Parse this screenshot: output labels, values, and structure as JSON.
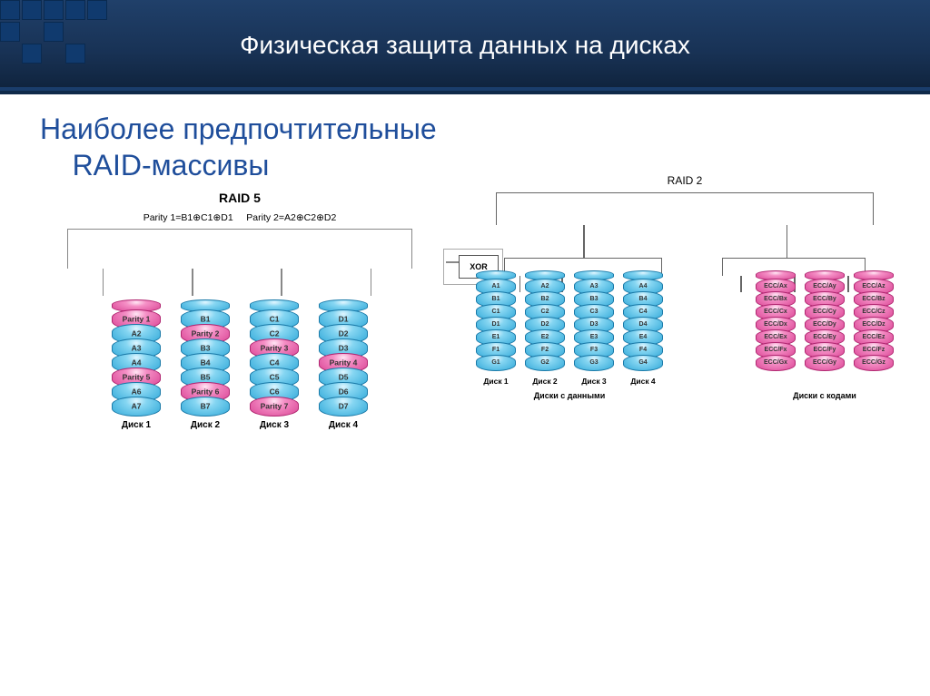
{
  "header": {
    "title": "Физическая защита данных на дисках",
    "deco_color": "#103a6e",
    "bg_gradient": [
      "#20406a",
      "#10243e"
    ]
  },
  "main": {
    "title_line1": "Наиболее предпочтительные",
    "title_line2": "RAID-массивы",
    "title_color": "#1f4e9b"
  },
  "raid5": {
    "type": "diagram",
    "title": "RAID 5",
    "parity_eq1": "Parity 1=B1⊕C1⊕D1",
    "parity_eq2": "Parity 2=A2⊕C2⊕D2",
    "xor_label": "XOR",
    "disk_label_prefix": "Диск",
    "colors": {
      "data": "#4ab6e0",
      "parity": "#e055a0",
      "border": "#888888"
    },
    "disks": [
      {
        "name": "Диск 1",
        "cells": [
          {
            "t": "p",
            "lbl": "Parity 1"
          },
          {
            "t": "d",
            "lbl": "A2"
          },
          {
            "t": "d",
            "lbl": "A3"
          },
          {
            "t": "d",
            "lbl": "A4"
          },
          {
            "t": "p",
            "lbl": "Parity 5"
          },
          {
            "t": "d",
            "lbl": "A6"
          },
          {
            "t": "d",
            "lbl": "A7"
          }
        ]
      },
      {
        "name": "Диск 2",
        "cells": [
          {
            "t": "d",
            "lbl": "B1"
          },
          {
            "t": "p",
            "lbl": "Parity 2"
          },
          {
            "t": "d",
            "lbl": "B3"
          },
          {
            "t": "d",
            "lbl": "B4"
          },
          {
            "t": "d",
            "lbl": "B5"
          },
          {
            "t": "p",
            "lbl": "Parity 6"
          },
          {
            "t": "d",
            "lbl": "B7"
          }
        ]
      },
      {
        "name": "Диск 3",
        "cells": [
          {
            "t": "d",
            "lbl": "C1"
          },
          {
            "t": "d",
            "lbl": "C2"
          },
          {
            "t": "p",
            "lbl": "Parity 3"
          },
          {
            "t": "d",
            "lbl": "C4"
          },
          {
            "t": "d",
            "lbl": "C5"
          },
          {
            "t": "d",
            "lbl": "C6"
          },
          {
            "t": "p",
            "lbl": "Parity 7"
          }
        ]
      },
      {
        "name": "Диск 4",
        "cells": [
          {
            "t": "d",
            "lbl": "D1"
          },
          {
            "t": "d",
            "lbl": "D2"
          },
          {
            "t": "d",
            "lbl": "D3"
          },
          {
            "t": "p",
            "lbl": "Parity 4"
          },
          {
            "t": "d",
            "lbl": "D5"
          },
          {
            "t": "d",
            "lbl": "D6"
          },
          {
            "t": "d",
            "lbl": "D7"
          }
        ]
      }
    ]
  },
  "raid2": {
    "type": "diagram",
    "title": "RAID 2",
    "group_data_label": "Диски с данными",
    "group_ecc_label": "Диски с кодами",
    "colors": {
      "data": "#4ab6e0",
      "ecc": "#e055a0",
      "border": "#666666"
    },
    "data_disks": [
      {
        "name": "Диск 1",
        "cells": [
          "A1",
          "B1",
          "C1",
          "D1",
          "E1",
          "F1",
          "G1"
        ]
      },
      {
        "name": "Диск 2",
        "cells": [
          "A2",
          "B2",
          "C2",
          "D2",
          "E2",
          "F2",
          "G2"
        ]
      },
      {
        "name": "Диск 3",
        "cells": [
          "A3",
          "B3",
          "C3",
          "D3",
          "E3",
          "F3",
          "G3"
        ]
      },
      {
        "name": "Диск 4",
        "cells": [
          "A4",
          "B4",
          "C4",
          "D4",
          "E4",
          "F4",
          "G4"
        ]
      }
    ],
    "ecc_disks": [
      {
        "name": "",
        "cells": [
          "ECC/Ax",
          "ECC/Bx",
          "ECC/Cx",
          "ECC/Dx",
          "ECC/Ex",
          "ECC/Fx",
          "ECC/Gx"
        ]
      },
      {
        "name": "",
        "cells": [
          "ECC/Ay",
          "ECC/By",
          "ECC/Cy",
          "ECC/Dy",
          "ECC/Ey",
          "ECC/Fy",
          "ECC/Gy"
        ]
      },
      {
        "name": "",
        "cells": [
          "ECC/Az",
          "ECC/Bz",
          "ECC/Cz",
          "ECC/Dz",
          "ECC/Ez",
          "ECC/Fz",
          "ECC/Gz"
        ]
      }
    ]
  }
}
